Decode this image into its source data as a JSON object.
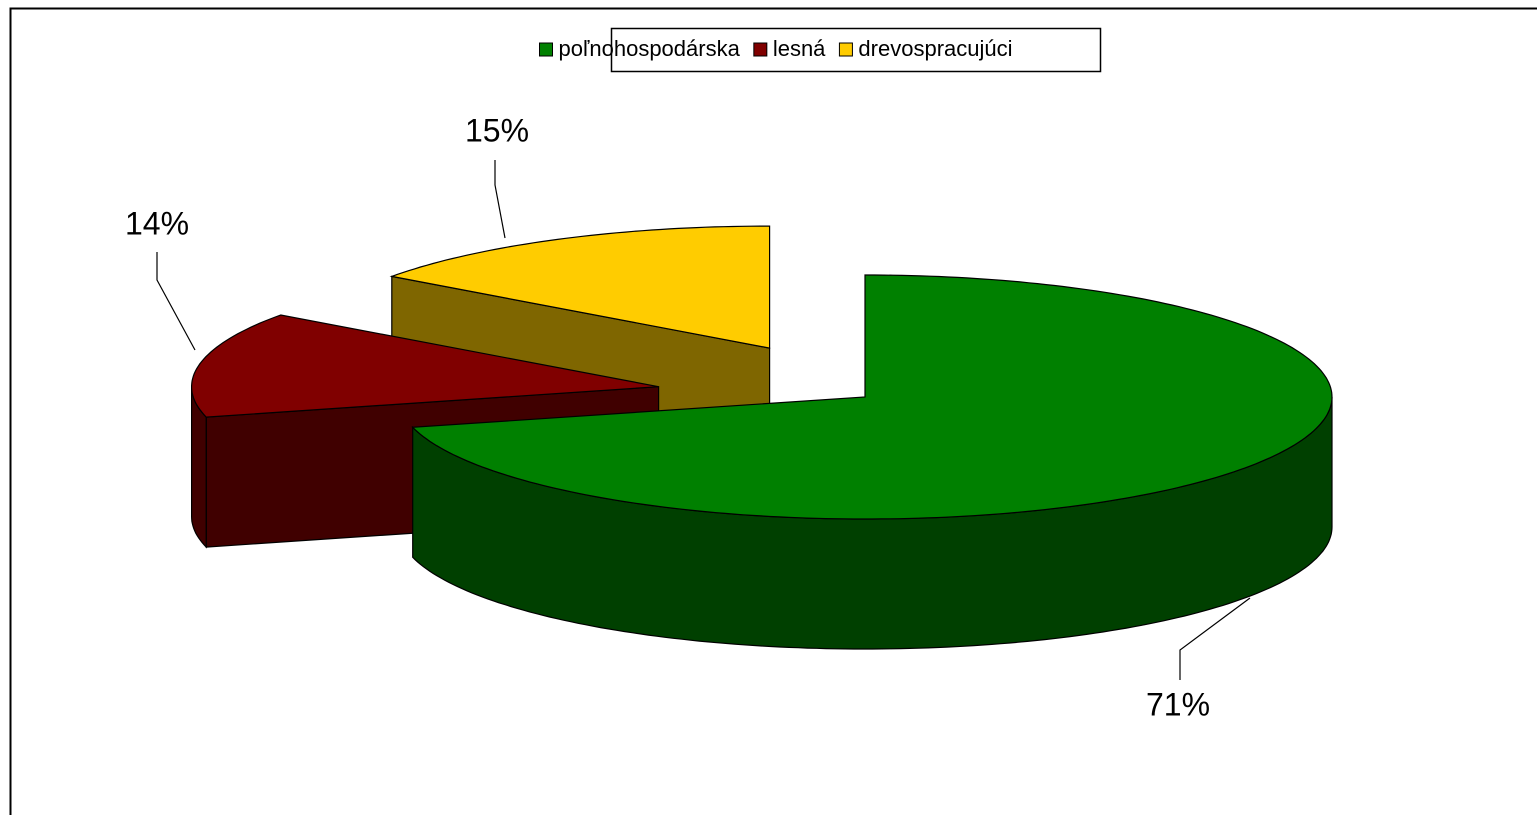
{
  "chart_data": {
    "type": "pie3d",
    "categories": [
      "poľnohospodárska",
      "lesná",
      "drevospracujúci"
    ],
    "values": [
      71,
      14,
      15
    ],
    "value_labels": [
      "71%",
      "14%",
      "15%"
    ],
    "colors": [
      "#008000",
      "#800000",
      "#ffcc00"
    ],
    "legend": "top"
  }
}
